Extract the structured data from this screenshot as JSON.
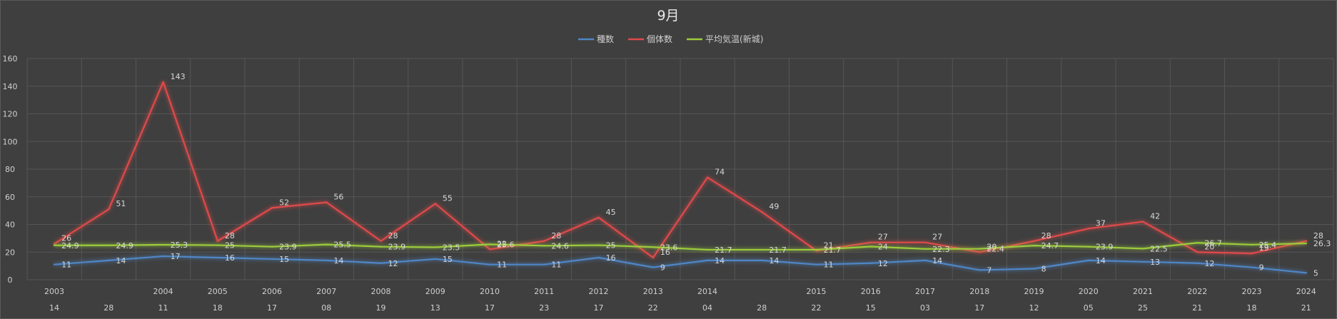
{
  "chart_data": {
    "type": "line",
    "title": "9月",
    "ylim": [
      0,
      160
    ],
    "yticks": [
      0,
      20,
      40,
      60,
      80,
      100,
      120,
      140,
      160
    ],
    "grid": true,
    "legend_position": "top",
    "categories_year": [
      "2003",
      "",
      "2004",
      "2005",
      "2006",
      "2007",
      "2008",
      "2009",
      "2010",
      "2011",
      "2012",
      "2013",
      "2014",
      "",
      "2015",
      "2016",
      "2017",
      "2018",
      "2019",
      "2020",
      "2021",
      "2022",
      "2023",
      "2024"
    ],
    "categories_day": [
      "14",
      "28",
      "11",
      "18",
      "17",
      "08",
      "19",
      "13",
      "17",
      "23",
      "17",
      "22",
      "04",
      "28",
      "22",
      "15",
      "03",
      "17",
      "12",
      "05",
      "25",
      "21",
      "18",
      "21"
    ],
    "series": [
      {
        "name": "種数",
        "color": "#4f86c6",
        "values": [
          11,
          14,
          17,
          16,
          15,
          14,
          12,
          15,
          11,
          11,
          16,
          9,
          14,
          14,
          11,
          12,
          14,
          7,
          8,
          14,
          13,
          12,
          9,
          5
        ],
        "labels": [
          "11",
          "14",
          "17",
          "16",
          "15",
          "14",
          "12",
          "15",
          "11",
          "11",
          "16",
          "9",
          "14",
          "14",
          "11",
          "12",
          "14",
          "7",
          "8",
          "14",
          "13",
          "12",
          "9",
          "5"
        ]
      },
      {
        "name": "個体数",
        "color": "#e04a4a",
        "values": [
          26,
          51,
          143,
          28,
          52,
          56,
          28,
          55,
          22,
          28,
          45,
          16,
          74,
          49,
          21,
          27,
          27,
          20,
          28,
          37,
          42,
          20,
          19,
          28
        ],
        "labels": [
          "26",
          "51",
          "143",
          "28",
          "52",
          "56",
          "28",
          "55",
          "22",
          "28",
          "45",
          "16",
          "74",
          "49",
          "21",
          "27",
          "27",
          "20",
          "28",
          "37",
          "42",
          "20",
          "19",
          "28"
        ]
      },
      {
        "name": "平均気温(新城)",
        "color": "#9ccc3c",
        "values": [
          24.9,
          24.9,
          25.3,
          25,
          23.9,
          25.5,
          23.9,
          23.5,
          25.6,
          24.6,
          25,
          23.6,
          21.7,
          21.7,
          21.7,
          24,
          22.3,
          22.4,
          24.7,
          23.9,
          22.5,
          26.7,
          25.4,
          26.3
        ],
        "labels": [
          "24.9",
          "24.9",
          "25.3",
          "25",
          "23.9",
          "25.5",
          "23.9",
          "23.5",
          "25.6",
          "24.6",
          "25",
          "23.6",
          "21.7",
          "21.7",
          "21.7",
          "24",
          "22.3",
          "22.4",
          "24.7",
          "23.9",
          "22.5",
          "26.7",
          "25.4",
          "26.3"
        ]
      }
    ]
  }
}
